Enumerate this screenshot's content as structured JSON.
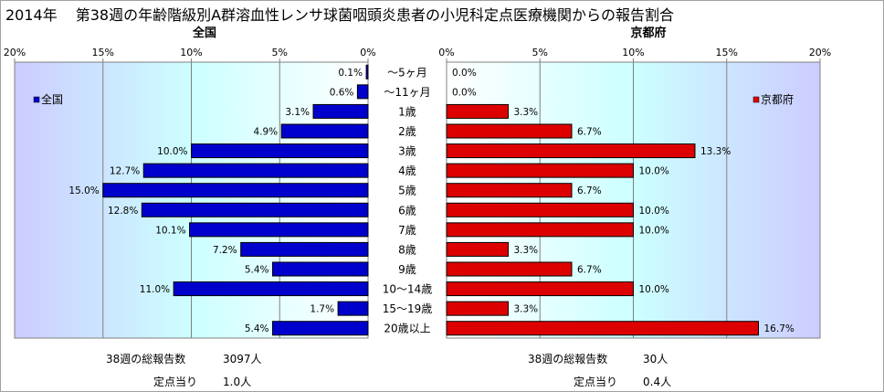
{
  "title": {
    "year": "2014年",
    "text": "第38週の年齢階級別A群溶血性レンサ球菌咽頭炎患者の小児科定点医療機関からの報告割合"
  },
  "chart_data": [
    {
      "type": "bar",
      "orientation": "horizontal",
      "direction": "right-to-left",
      "title": "全国",
      "legend": "全国",
      "legend_position": "top-left",
      "color": "#0000cc",
      "xlim": [
        0,
        20
      ],
      "ticks": [
        "20%",
        "15%",
        "10%",
        "5%",
        "0%"
      ],
      "tick_values": [
        20,
        15,
        10,
        5,
        0
      ],
      "categories": [
        "～5ヶ月",
        "～11ヶ月",
        "1歳",
        "2歳",
        "3歳",
        "4歳",
        "5歳",
        "6歳",
        "7歳",
        "8歳",
        "9歳",
        "10～14歳",
        "15～19歳",
        "20歳以上"
      ],
      "values": [
        0.1,
        0.6,
        3.1,
        4.9,
        10.0,
        12.7,
        15.0,
        12.8,
        10.1,
        7.2,
        5.4,
        11.0,
        1.7,
        5.4
      ],
      "labels": [
        "0.1%",
        "0.6%",
        "3.1%",
        "4.9%",
        "10.0%",
        "12.7%",
        "15.0%",
        "12.8%",
        "10.1%",
        "7.2%",
        "5.4%",
        "11.0%",
        "1.7%",
        "5.4%"
      ],
      "grid": true
    },
    {
      "type": "bar",
      "orientation": "horizontal",
      "direction": "left-to-right",
      "title": "京都府",
      "legend": "京都府",
      "legend_position": "top-right",
      "color": "#dd0000",
      "xlim": [
        0,
        20
      ],
      "ticks": [
        "0%",
        "5%",
        "10%",
        "15%",
        "20%"
      ],
      "tick_values": [
        0,
        5,
        10,
        15,
        20
      ],
      "categories": [
        "～5ヶ月",
        "～11ヶ月",
        "1歳",
        "2歳",
        "3歳",
        "4歳",
        "5歳",
        "6歳",
        "7歳",
        "8歳",
        "9歳",
        "10～14歳",
        "15～19歳",
        "20歳以上"
      ],
      "values": [
        0.0,
        0.0,
        3.3,
        6.7,
        13.3,
        10.0,
        6.7,
        10.0,
        10.0,
        3.3,
        6.7,
        10.0,
        3.3,
        16.7
      ],
      "labels": [
        "0.0%",
        "0.0%",
        "3.3%",
        "6.7%",
        "13.3%",
        "10.0%",
        "6.7%",
        "10.0%",
        "10.0%",
        "3.3%",
        "6.7%",
        "10.0%",
        "3.3%",
        "16.7%"
      ],
      "grid": true
    }
  ],
  "footer": {
    "national": {
      "total_label": "38週の総報告数",
      "total_value": "3097人",
      "per_label": "定点当り",
      "per_value": "1.0人"
    },
    "kyoto": {
      "total_label": "38週の総報告数",
      "total_value": "30人",
      "per_label": "定点当り",
      "per_value": "0.4人"
    }
  }
}
